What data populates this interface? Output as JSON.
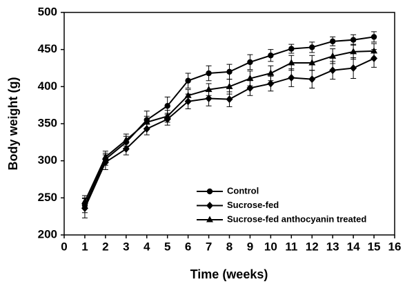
{
  "chart_data": {
    "type": "line",
    "x_label": "Time (weeks)",
    "y_label": "Body weight (g)",
    "x": [
      1,
      2,
      3,
      4,
      5,
      6,
      7,
      8,
      9,
      10,
      11,
      12,
      13,
      14,
      15
    ],
    "series": [
      {
        "name": "Control",
        "color": "#000000",
        "marker": "circle",
        "values": [
          240,
          302,
          325,
          355,
          374,
          408,
          418,
          420,
          433,
          442,
          451,
          453,
          461,
          463,
          467
        ],
        "errors": [
          10,
          8,
          8,
          12,
          12,
          10,
          10,
          10,
          10,
          8,
          6,
          7,
          6,
          7,
          7
        ]
      },
      {
        "name": "Sucrose-fed",
        "color": "#000000",
        "marker": "diamond",
        "values": [
          236,
          298,
          316,
          343,
          356,
          380,
          384,
          383,
          398,
          404,
          412,
          410,
          422,
          425,
          438
        ],
        "errors": [
          13,
          10,
          8,
          8,
          8,
          10,
          10,
          10,
          10,
          10,
          12,
          12,
          12,
          14,
          12
        ]
      },
      {
        "name": "Sucrose-fed anthocyanin treated",
        "color": "#000000",
        "marker": "triangle",
        "values": [
          245,
          305,
          328,
          352,
          360,
          388,
          396,
          400,
          411,
          418,
          432,
          432,
          441,
          447,
          448
        ],
        "errors": [
          8,
          8,
          8,
          8,
          8,
          8,
          8,
          10,
          10,
          10,
          10,
          10,
          10,
          10,
          10
        ]
      }
    ],
    "xlim": [
      0,
      16
    ],
    "xticks": [
      0,
      1,
      2,
      3,
      4,
      5,
      6,
      7,
      8,
      9,
      10,
      11,
      12,
      13,
      14,
      15,
      16
    ],
    "ylim": [
      200,
      500
    ],
    "yticks": [
      200,
      250,
      300,
      350,
      400,
      450,
      500
    ],
    "grid": false,
    "legend_position": "lower right"
  }
}
